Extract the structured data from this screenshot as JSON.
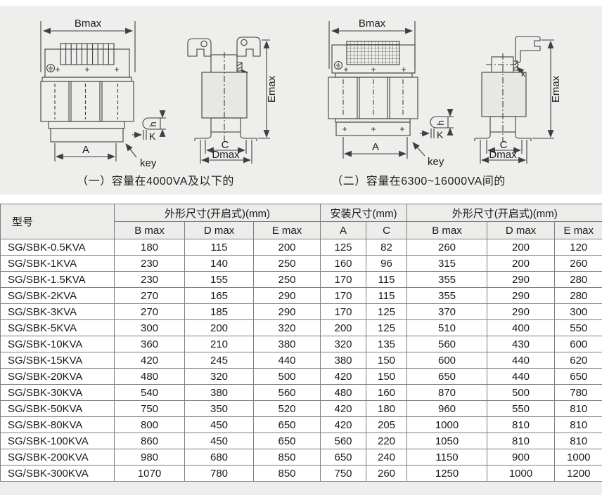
{
  "colors": {
    "page_bg": "#eeeeec",
    "table_header_bg": "#ececea",
    "drawing_line": "#3f3f3f",
    "table_border": "#7d7d7d"
  },
  "diagrams": {
    "labels": {
      "bmax": "Bmax",
      "emax": "Emax",
      "a": "A",
      "c": "C",
      "dmax": "Dmax",
      "h": "h",
      "k": "K",
      "k_small": "k",
      "key": "key"
    },
    "caption_1": "（一）容量在4000VA及以下的",
    "caption_2": "（二）容量在6300~16000VA间的"
  },
  "table": {
    "model_header": "型号",
    "groups": [
      "外形尺寸(开启式)(mm)",
      "安装尺寸(mm)",
      "外形尺寸(开启式)(mm)"
    ],
    "subheaders": [
      "B max",
      "D max",
      "E max",
      "A",
      "C",
      "B max",
      "D max",
      "E max"
    ],
    "rows": [
      [
        "SG/SBK-0.5KVA",
        180,
        115,
        200,
        125,
        82,
        260,
        200,
        120
      ],
      [
        "SG/SBK-1KVA",
        230,
        140,
        250,
        160,
        96,
        315,
        200,
        260
      ],
      [
        "SG/SBK-1.5KVA",
        230,
        155,
        250,
        170,
        115,
        355,
        290,
        280
      ],
      [
        "SG/SBK-2KVA",
        270,
        165,
        290,
        170,
        115,
        355,
        290,
        280
      ],
      [
        "SG/SBK-3KVA",
        270,
        185,
        290,
        170,
        125,
        370,
        290,
        300
      ],
      [
        "SG/SBK-5KVA",
        300,
        200,
        320,
        200,
        125,
        510,
        400,
        550
      ],
      [
        "SG/SBK-10KVA",
        360,
        210,
        380,
        320,
        135,
        560,
        430,
        600
      ],
      [
        "SG/SBK-15KVA",
        420,
        245,
        440,
        380,
        150,
        600,
        440,
        620
      ],
      [
        "SG/SBK-20KVA",
        480,
        320,
        500,
        420,
        150,
        650,
        440,
        650
      ],
      [
        "SG/SBK-30KVA",
        540,
        380,
        560,
        480,
        160,
        870,
        500,
        780
      ],
      [
        "SG/SBK-50KVA",
        750,
        350,
        520,
        420,
        180,
        960,
        550,
        810
      ],
      [
        "SG/SBK-80KVA",
        800,
        450,
        650,
        420,
        205,
        1000,
        810,
        810
      ],
      [
        "SG/SBK-100KVA",
        860,
        450,
        650,
        560,
        220,
        1050,
        810,
        810
      ],
      [
        "SG/SBK-200KVA",
        980,
        680,
        850,
        650,
        240,
        1150,
        900,
        1000
      ],
      [
        "SG/SBK-300KVA",
        1070,
        780,
        850,
        750,
        260,
        1250,
        1000,
        1200
      ]
    ]
  }
}
